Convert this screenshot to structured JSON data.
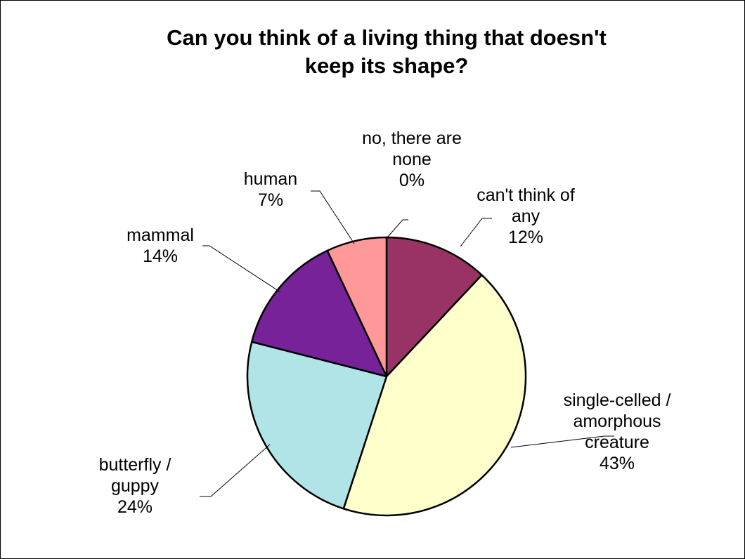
{
  "chart_data": {
    "type": "pie",
    "title": [
      "Can you think of a living thing that doesn't",
      "keep its shape?"
    ],
    "start_angle_deg": 0,
    "direction": "clockwise",
    "slices": [
      {
        "label": [
          "can't think of",
          "any"
        ],
        "value": 12,
        "value_label": "12%",
        "color": "#993366"
      },
      {
        "label": [
          "single-celled /",
          "amorphous",
          "creature"
        ],
        "value": 43,
        "value_label": "43%",
        "color": "#FFFFCC"
      },
      {
        "label": [
          "butterfly /",
          "guppy"
        ],
        "value": 24,
        "value_label": "24%",
        "color": "#B0E4E6"
      },
      {
        "label": [
          "mammal"
        ],
        "value": 14,
        "value_label": "14%",
        "color": "#772299"
      },
      {
        "label": [
          "human"
        ],
        "value": 7,
        "value_label": "7%",
        "color": "#FF9999"
      },
      {
        "label": [
          "no, there are",
          "none"
        ],
        "value": 0,
        "value_label": "0%",
        "color": "#CCCCFF"
      }
    ],
    "legend": "none",
    "data_labels": "outside with leader lines"
  }
}
